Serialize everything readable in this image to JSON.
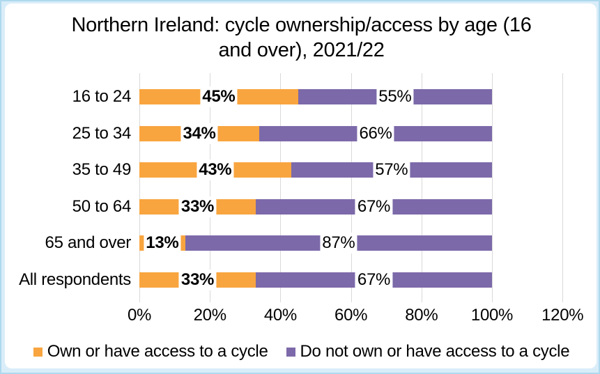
{
  "chart_data": {
    "type": "bar",
    "orientation": "horizontal-stacked",
    "title_lines": [
      "Northern Ireland: cycle ownership/access by age (16",
      "and over), 2021/22"
    ],
    "categories": [
      "16 to 24",
      "25 to 34",
      "35 to 49",
      "50 to 64",
      "65 and over",
      "All respondents"
    ],
    "series": [
      {
        "name": "Own or have access to a cycle",
        "color": "#F8A53F",
        "values": [
          45,
          34,
          43,
          33,
          13,
          33
        ],
        "labels": [
          "45%",
          "34%",
          "43%",
          "33%",
          "13%",
          "33%"
        ]
      },
      {
        "name": "Do not own or have access to a cycle",
        "color": "#7C69A9",
        "values": [
          55,
          66,
          57,
          67,
          87,
          67
        ],
        "labels": [
          "55%",
          "66%",
          "57%",
          "67%",
          "87%",
          "67%"
        ]
      }
    ],
    "x_axis": {
      "min": 0,
      "max": 120,
      "tick_step": 20,
      "ticks": [
        "0%",
        "20%",
        "40%",
        "60%",
        "80%",
        "100%",
        "120%"
      ],
      "gridlines": true
    },
    "colors": {
      "gridline": "#D9D9D9",
      "text": "#000000",
      "plot_background": "#FFFFFF",
      "frame_background": "#D9EDF9",
      "frame_edge": "#AED9EF",
      "label_box_background": "#FFFFFF"
    }
  }
}
